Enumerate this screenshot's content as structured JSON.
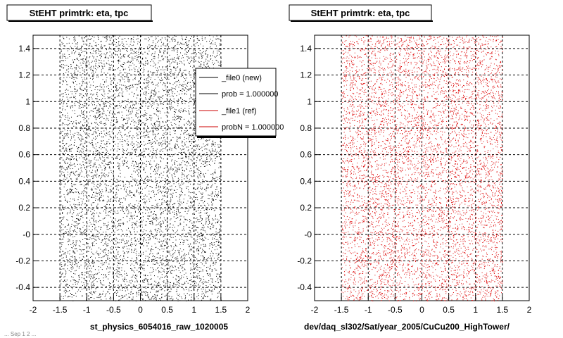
{
  "footer_text": "... Sep 1 2 ...",
  "chart_data": [
    {
      "type": "scatter",
      "title": "StEHT primtrk: eta, tpc",
      "xlabel": "st_physics_6054016_raw_1020005",
      "ylabel": "",
      "xlim": [
        -2,
        2
      ],
      "ylim": [
        -0.5,
        1.5
      ],
      "x_ticks": [
        "-2",
        "-1.5",
        "-1",
        "-0.5",
        "0",
        "0.5",
        "1",
        "1.5",
        "2"
      ],
      "y_ticks": [
        "-0.4",
        "-0.2",
        "-0",
        "0.2",
        "0.4",
        "0.6",
        "0.8",
        "1",
        "1.2",
        "1.4"
      ],
      "grid": true,
      "point_color": "#000000",
      "data_x_range": [
        -1.5,
        1.5
      ],
      "data_y_range": [
        -0.5,
        1.5
      ],
      "legend": {
        "placement": "top-right",
        "entries": [
          {
            "label": "_file0 (new)",
            "color": "#000000"
          },
          {
            "label": "prob = 1.000000",
            "color": "#000000"
          },
          {
            "label": "_file1 (ref)",
            "color": "#cc0000"
          },
          {
            "label": "probN = 1.000000",
            "color": "#cc0000"
          }
        ]
      }
    },
    {
      "type": "scatter",
      "title": "StEHT primtrk: eta, tpc",
      "xlabel": "dev/daq_sl302/Sat/year_2005/CuCu200_HighTower/",
      "ylabel": "",
      "xlim": [
        -2,
        2
      ],
      "ylim": [
        -0.5,
        1.5
      ],
      "x_ticks": [
        "-2",
        "-1.5",
        "-1",
        "-0.5",
        "0",
        "0.5",
        "1",
        "1.5",
        "2"
      ],
      "y_ticks": [
        "-0.4",
        "-0.2",
        "-0",
        "0.2",
        "0.4",
        "0.6",
        "0.8",
        "1",
        "1.2",
        "1.4"
      ],
      "grid": true,
      "point_color": "#dd0000",
      "data_x_range": [
        -1.5,
        1.5
      ],
      "data_y_range": [
        -0.5,
        1.5
      ]
    }
  ]
}
